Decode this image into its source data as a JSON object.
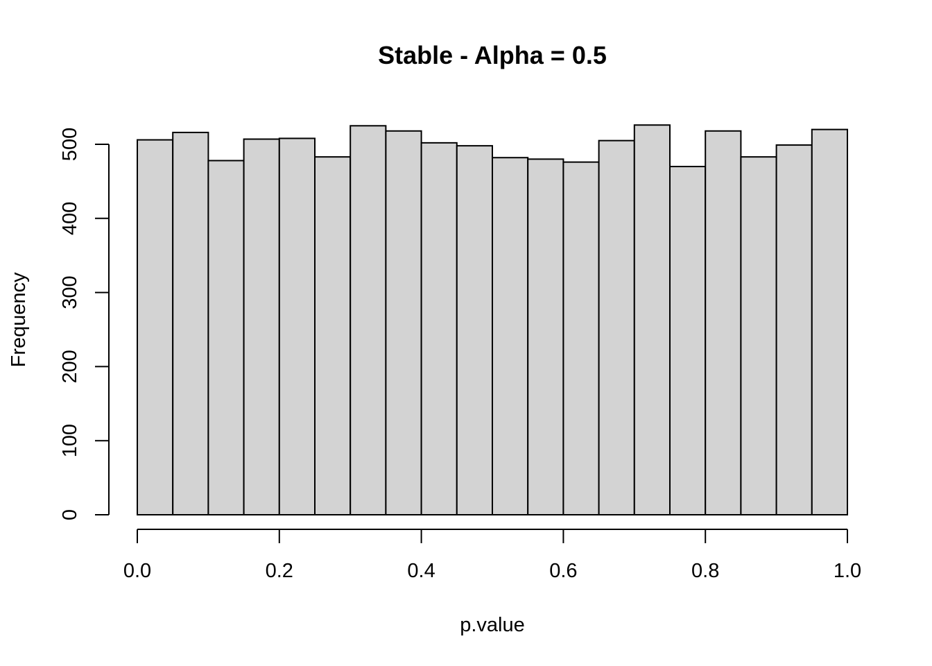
{
  "chart_data": {
    "type": "bar",
    "title": "Stable - Alpha = 0.5",
    "xlabel": "p.value",
    "ylabel": "Frequency",
    "xlim": [
      0.0,
      1.0
    ],
    "ylim": [
      0,
      500
    ],
    "x_ticks": [
      "0.0",
      "0.2",
      "0.4",
      "0.6",
      "0.8",
      "1.0"
    ],
    "y_ticks": [
      "0",
      "100",
      "200",
      "300",
      "400",
      "500"
    ],
    "bin_edges": [
      0.0,
      0.05,
      0.1,
      0.15,
      0.2,
      0.25,
      0.3,
      0.35,
      0.4,
      0.45,
      0.5,
      0.55,
      0.6,
      0.65,
      0.7,
      0.75,
      0.8,
      0.85,
      0.9,
      0.95,
      1.0
    ],
    "values": [
      506,
      516,
      478,
      507,
      508,
      483,
      525,
      518,
      502,
      498,
      482,
      480,
      476,
      505,
      526,
      470,
      518,
      483,
      499,
      520
    ],
    "bar_color": "#d3d3d3",
    "grid": false
  }
}
